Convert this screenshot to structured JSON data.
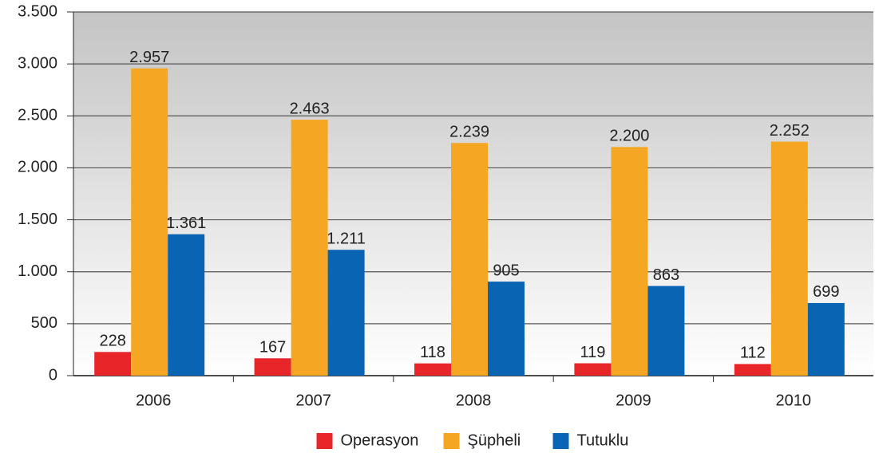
{
  "chart_data": {
    "type": "bar",
    "categories": [
      "2006",
      "2007",
      "2008",
      "2009",
      "2010"
    ],
    "series": [
      {
        "name": "Operasyon",
        "color": "#e8262a",
        "values": [
          228,
          167,
          118,
          119,
          112
        ],
        "value_labels": [
          "228",
          "167",
          "118",
          "119",
          "112"
        ]
      },
      {
        "name": "Şüpheli",
        "color": "#f5a623",
        "values": [
          2957,
          2463,
          2239,
          2200,
          2252
        ],
        "value_labels": [
          "2.957",
          "2.463",
          "2.239",
          "2.200",
          "2.252"
        ]
      },
      {
        "name": "Tutuklu",
        "color": "#0a64b4",
        "values": [
          1361,
          1211,
          905,
          863,
          699
        ],
        "value_labels": [
          "1.361",
          "1.211",
          "905",
          "863",
          "699"
        ]
      }
    ],
    "ylim": [
      0,
      3500
    ],
    "yticks": [
      0,
      500,
      {
        "value": 1000,
        "label": "1.000"
      },
      {
        "value": 1500,
        "label": "1.500"
      },
      {
        "value": 2000,
        "label": "2.000"
      },
      {
        "value": 2500,
        "label": "2.500"
      },
      {
        "value": 3000,
        "label": "3.000"
      },
      {
        "value": 3500,
        "label": "3.500"
      }
    ],
    "grid": true,
    "legend": "bottom"
  }
}
